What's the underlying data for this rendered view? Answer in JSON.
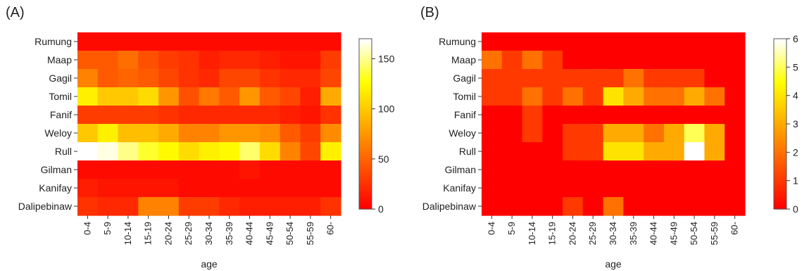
{
  "chart_data": [
    {
      "type": "heatmap",
      "panel_label": "(A)",
      "xlabel": "age",
      "x": [
        "0-4",
        "5-9",
        "10-14",
        "15-19",
        "20-24",
        "25-29",
        "30-34",
        "35-39",
        "40-44",
        "45-49",
        "50-54",
        "55-59",
        "60-"
      ],
      "y": [
        "Rumung",
        "Maap",
        "Gagil",
        "Tomil",
        "Fanif",
        "Weloy",
        "Rull",
        "Gilman",
        "Kanifay",
        "Dalipebinaw"
      ],
      "zlim": [
        0,
        170
      ],
      "colorbar_ticks": [
        0,
        50,
        100,
        150
      ],
      "colormap": "heat (red to yellow to white)",
      "values": [
        [
          5,
          5,
          5,
          5,
          5,
          5,
          5,
          5,
          5,
          5,
          5,
          5,
          5
        ],
        [
          45,
          45,
          55,
          40,
          30,
          25,
          15,
          20,
          20,
          15,
          10,
          10,
          30
        ],
        [
          65,
          45,
          50,
          45,
          35,
          25,
          20,
          35,
          35,
          25,
          20,
          20,
          35
        ],
        [
          120,
          100,
          100,
          110,
          75,
          40,
          60,
          45,
          75,
          45,
          35,
          15,
          85
        ],
        [
          30,
          30,
          30,
          30,
          25,
          20,
          20,
          20,
          20,
          20,
          15,
          10,
          25
        ],
        [
          100,
          120,
          95,
          95,
          85,
          65,
          65,
          75,
          75,
          70,
          45,
          30,
          70
        ],
        [
          170,
          165,
          150,
          135,
          125,
          110,
          120,
          125,
          145,
          110,
          65,
          35,
          120
        ],
        [
          5,
          5,
          5,
          5,
          5,
          5,
          5,
          5,
          10,
          5,
          5,
          5,
          5
        ],
        [
          15,
          10,
          10,
          10,
          10,
          5,
          5,
          5,
          5,
          5,
          5,
          5,
          5
        ],
        [
          25,
          20,
          20,
          65,
          65,
          30,
          30,
          20,
          15,
          15,
          15,
          15,
          25
        ]
      ]
    },
    {
      "type": "heatmap",
      "panel_label": "(B)",
      "xlabel": "age",
      "x": [
        "0-4",
        "5-9",
        "10-14",
        "15-19",
        "20-24",
        "25-29",
        "30-34",
        "35-39",
        "40-44",
        "45-49",
        "50-54",
        "55-59",
        "60-"
      ],
      "y": [
        "Rumung",
        "Maap",
        "Gagil",
        "Tomil",
        "Fanif",
        "Weloy",
        "Rull",
        "Gilman",
        "Kanifay",
        "Dalipebinaw"
      ],
      "zlim": [
        0,
        6
      ],
      "colorbar_ticks": [
        0,
        1,
        2,
        3,
        4,
        5,
        6
      ],
      "colormap": "heat (red to yellow to white)",
      "values": [
        [
          0,
          0,
          0,
          0,
          0,
          0,
          0,
          0,
          0,
          0,
          0,
          0,
          0
        ],
        [
          2,
          1,
          2,
          1,
          0,
          0,
          0,
          0,
          0,
          0,
          0,
          0,
          0
        ],
        [
          1,
          1,
          1,
          1,
          1,
          1,
          1,
          2,
          1,
          1,
          1,
          0,
          0
        ],
        [
          1,
          1,
          2,
          1,
          2,
          1,
          4,
          3,
          2,
          2,
          3,
          2,
          0
        ],
        [
          0,
          0,
          1,
          0,
          0,
          0,
          0,
          0,
          0,
          0,
          0,
          0,
          0
        ],
        [
          0,
          0,
          1,
          0,
          1,
          1,
          3,
          3,
          2,
          3,
          5,
          3,
          0
        ],
        [
          0,
          0,
          0,
          0,
          1,
          1,
          4,
          4,
          3,
          3,
          6,
          3,
          0
        ],
        [
          0,
          0,
          0,
          0,
          0,
          0,
          0,
          0,
          0,
          0,
          0,
          0,
          0
        ],
        [
          0,
          0,
          0,
          0,
          0,
          0,
          0,
          0,
          0,
          0,
          0,
          0,
          0
        ],
        [
          0,
          0,
          0,
          0,
          1,
          0,
          2,
          0,
          0,
          0,
          0,
          0,
          0
        ]
      ]
    }
  ]
}
